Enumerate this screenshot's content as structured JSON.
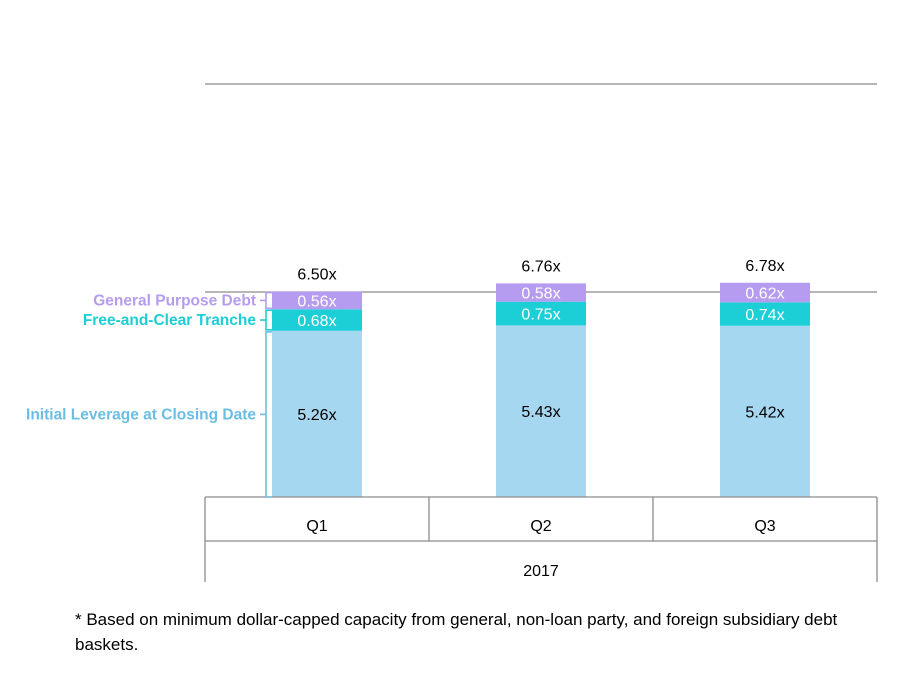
{
  "chart_data": {
    "type": "bar",
    "stacked": true,
    "title": "",
    "xlabel": "",
    "ylabel": "",
    "categories": [
      "Q1",
      "Q2",
      "Q3"
    ],
    "category_group": "2017",
    "series": [
      {
        "name": "Initial Leverage at Closing Date",
        "values": [
          5.26,
          5.43,
          5.42
        ],
        "labels": [
          "5.26x",
          "5.43x",
          "5.42x"
        ],
        "color": "#a6d7f0",
        "label_color": "#ffffff"
      },
      {
        "name": "Free-and-Clear Tranche",
        "values": [
          0.68,
          0.75,
          0.74
        ],
        "labels": [
          "0.68x",
          "0.75x",
          "0.74x"
        ],
        "color": "#1ccfd6",
        "label_color": "#ffffff"
      },
      {
        "name": "General Purpose Debt",
        "values": [
          0.56,
          0.58,
          0.62
        ],
        "labels": [
          "0.56x",
          "0.58x",
          "0.62x"
        ],
        "color": "#b59cf0",
        "label_color": "#ffffff"
      }
    ],
    "totals": [
      "6.50x",
      "6.76x",
      "6.78x"
    ],
    "legend_colors": [
      "#6bbde3",
      "#1ccfd6",
      "#b59cf0"
    ],
    "ylim": [
      0,
      7
    ],
    "grid": true,
    "legend_placement": "left (bracket labels)"
  },
  "footnote": "* Based on minimum dollar-capped capacity from general, non-loan party, and foreign subsidiary debt baskets."
}
